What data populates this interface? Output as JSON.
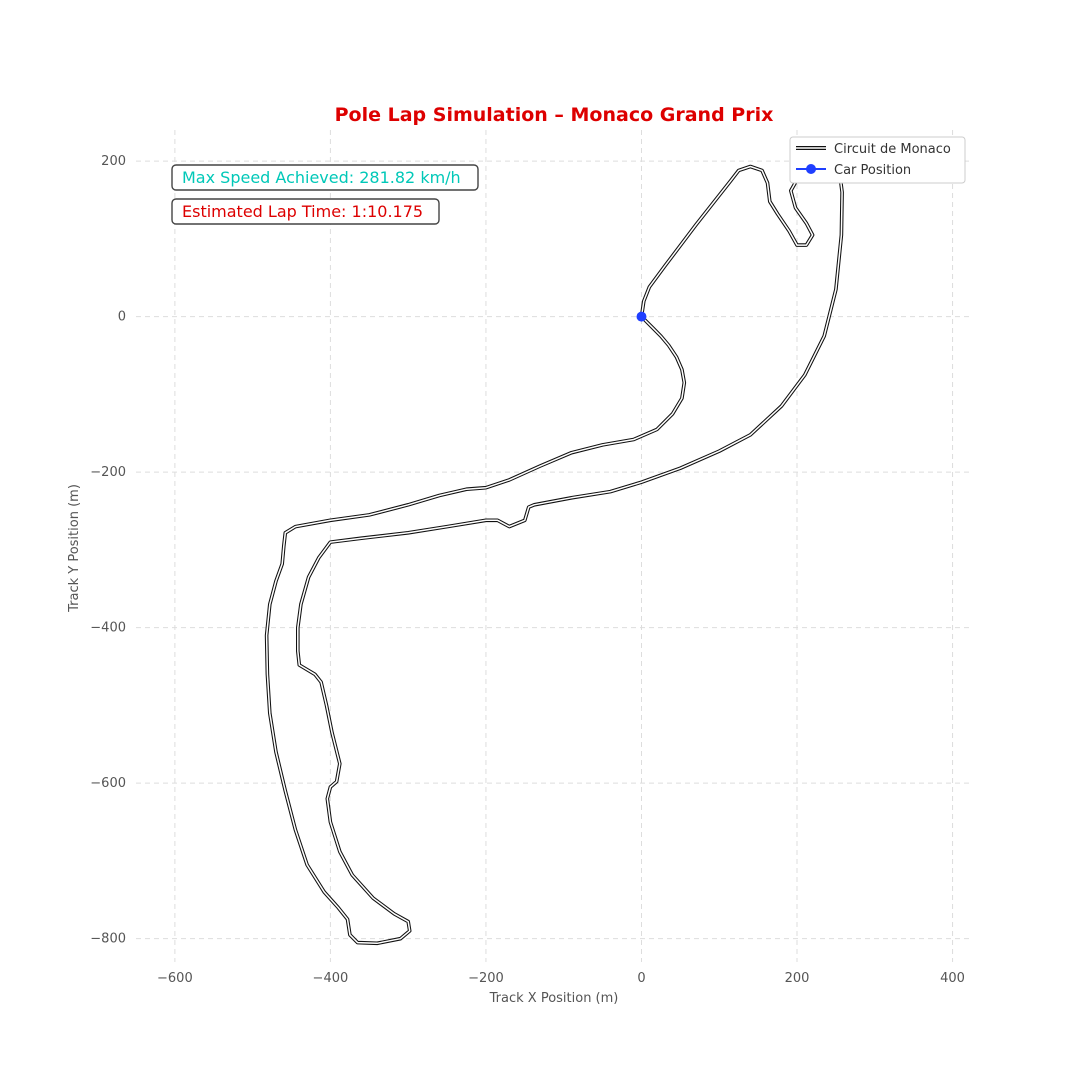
{
  "chart_data": {
    "type": "line",
    "title": "Pole Lap Simulation – Monaco Grand Prix",
    "xlabel": "Track X Position (m)",
    "ylabel": "Track Y Position (m)",
    "xlim": [
      -650,
      425
    ],
    "ylim": [
      -830,
      240
    ],
    "x_ticks": [
      -600,
      -400,
      -200,
      0,
      200,
      400
    ],
    "y_ticks": [
      200,
      0,
      -200,
      -400,
      -600,
      -800
    ],
    "x_tick_labels": [
      "−600",
      "−400",
      "−200",
      "0",
      "200",
      "400"
    ],
    "y_tick_labels": [
      "200",
      "0",
      "−200",
      "−400",
      "−600",
      "−800"
    ],
    "grid": true,
    "legend_position": "top-right",
    "colors": {
      "title": "#dd0000",
      "track": "#111111",
      "car": "#1f3fff",
      "speed_text": "#00c8b8",
      "laptime_text": "#dd0000"
    },
    "series": [
      {
        "name": "Circuit de Monaco",
        "points": [
          [
            0,
            0
          ],
          [
            5,
            -5
          ],
          [
            15,
            -15
          ],
          [
            25,
            -25
          ],
          [
            35,
            -37
          ],
          [
            45,
            -52
          ],
          [
            52,
            -68
          ],
          [
            55,
            -85
          ],
          [
            52,
            -105
          ],
          [
            40,
            -125
          ],
          [
            20,
            -145
          ],
          [
            -10,
            -158
          ],
          [
            -50,
            -165
          ],
          [
            -90,
            -175
          ],
          [
            -130,
            -192
          ],
          [
            -170,
            -210
          ],
          [
            -200,
            -220
          ],
          [
            -225,
            -222
          ],
          [
            -260,
            -230
          ],
          [
            -300,
            -242
          ],
          [
            -350,
            -255
          ],
          [
            -400,
            -262
          ],
          [
            -445,
            -270
          ],
          [
            -458,
            -278
          ],
          [
            -460,
            -295
          ],
          [
            -462,
            -318
          ],
          [
            -470,
            -340
          ],
          [
            -478,
            -370
          ],
          [
            -482,
            -410
          ],
          [
            -481,
            -460
          ],
          [
            -478,
            -510
          ],
          [
            -470,
            -560
          ],
          [
            -458,
            -610
          ],
          [
            -445,
            -660
          ],
          [
            -430,
            -705
          ],
          [
            -408,
            -740
          ],
          [
            -390,
            -760
          ],
          [
            -378,
            -775
          ],
          [
            -375,
            -795
          ],
          [
            -365,
            -805
          ],
          [
            -340,
            -806
          ],
          [
            -310,
            -800
          ],
          [
            -298,
            -790
          ],
          [
            -300,
            -778
          ],
          [
            -318,
            -768
          ],
          [
            -345,
            -748
          ],
          [
            -372,
            -718
          ],
          [
            -388,
            -688
          ],
          [
            -400,
            -650
          ],
          [
            -404,
            -620
          ],
          [
            -400,
            -605
          ],
          [
            -392,
            -598
          ],
          [
            -388,
            -575
          ],
          [
            -398,
            -535
          ],
          [
            -405,
            -500
          ],
          [
            -412,
            -470
          ],
          [
            -420,
            -460
          ],
          [
            -440,
            -448
          ],
          [
            -442,
            -430
          ],
          [
            -442,
            -400
          ],
          [
            -438,
            -370
          ],
          [
            -428,
            -335
          ],
          [
            -415,
            -310
          ],
          [
            -400,
            -290
          ],
          [
            -360,
            -285
          ],
          [
            -300,
            -278
          ],
          [
            -250,
            -270
          ],
          [
            -200,
            -262
          ],
          [
            -185,
            -262
          ],
          [
            -170,
            -270
          ],
          [
            -150,
            -262
          ],
          [
            -145,
            -245
          ],
          [
            -138,
            -242
          ],
          [
            -90,
            -233
          ],
          [
            -40,
            -225
          ],
          [
            0,
            -213
          ],
          [
            50,
            -195
          ],
          [
            100,
            -173
          ],
          [
            140,
            -152
          ],
          [
            180,
            -115
          ],
          [
            210,
            -75
          ],
          [
            235,
            -25
          ],
          [
            250,
            35
          ],
          [
            257,
            105
          ],
          [
            258,
            160
          ],
          [
            255,
            183
          ],
          [
            245,
            185
          ],
          [
            220,
            182
          ],
          [
            200,
            176
          ],
          [
            192,
            162
          ],
          [
            198,
            140
          ],
          [
            212,
            120
          ],
          [
            220,
            105
          ],
          [
            212,
            92
          ],
          [
            200,
            92
          ],
          [
            190,
            110
          ],
          [
            175,
            132
          ],
          [
            165,
            148
          ],
          [
            162,
            172
          ],
          [
            155,
            188
          ],
          [
            140,
            193
          ],
          [
            125,
            188
          ],
          [
            115,
            175
          ],
          [
            70,
            118
          ],
          [
            30,
            65
          ],
          [
            10,
            38
          ],
          [
            3,
            20
          ],
          [
            0,
            0
          ]
        ]
      },
      {
        "name": "Car Position",
        "points": [
          [
            0,
            0
          ]
        ]
      }
    ]
  },
  "annotations": [
    {
      "id": "speed",
      "text": "Max Speed Achieved: 281.82 km/h"
    },
    {
      "id": "laptime",
      "text": "Estimated Lap Time: 1:10.175"
    }
  ]
}
